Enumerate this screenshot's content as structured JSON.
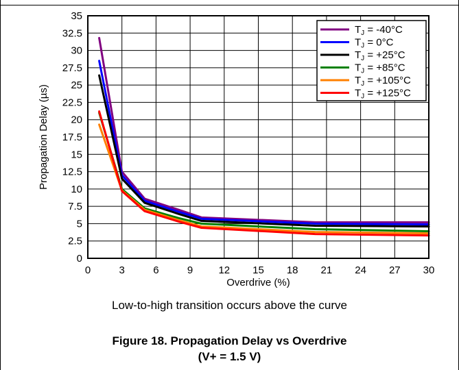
{
  "chart_data": {
    "type": "line",
    "xlabel": "Overdrive (%)",
    "ylabel": "Propagation Delay (µs)",
    "xlim": [
      0,
      30
    ],
    "ylim": [
      0,
      35
    ],
    "xticks": [
      0,
      3,
      6,
      9,
      12,
      15,
      18,
      21,
      24,
      27,
      30
    ],
    "xtick_labels": [
      "0",
      "3",
      "6",
      "9",
      "12",
      "15",
      "18",
      "21",
      "24",
      "27",
      "30"
    ],
    "yticks": [
      0,
      2.5,
      5,
      7.5,
      10,
      12.5,
      15,
      17.5,
      20,
      22.5,
      25,
      27.5,
      30,
      32.5,
      35
    ],
    "ytick_labels": [
      "0",
      "2.5",
      "5",
      "7.5",
      "10",
      "12.5",
      "15",
      "17.5",
      "20",
      "22.5",
      "25",
      "27.5",
      "30",
      "32.5",
      "35"
    ],
    "grid": true,
    "legend_position": "top-right",
    "x": [
      1,
      3,
      5,
      8,
      10,
      20,
      30
    ],
    "series": [
      {
        "name": "T",
        "subscript": "J",
        "suffix": " = -40°C",
        "color": "#800080",
        "values": [
          31.8,
          12.5,
          8.6,
          7.0,
          5.9,
          5.2,
          5.2
        ]
      },
      {
        "name": "T",
        "subscript": "J",
        "suffix": " = 0°C",
        "color": "#0000ff",
        "values": [
          28.5,
          12.0,
          8.3,
          6.7,
          5.7,
          5.0,
          4.9
        ]
      },
      {
        "name": "T",
        "subscript": "J",
        "suffix": " = +25°C",
        "color": "#000000",
        "values": [
          26.4,
          11.5,
          8.0,
          6.4,
          5.4,
          4.7,
          4.6
        ]
      },
      {
        "name": "T",
        "subscript": "J",
        "suffix": " = +85°C",
        "color": "#008000",
        "values": [
          21.0,
          10.0,
          7.2,
          5.8,
          5.0,
          4.2,
          3.9
        ]
      },
      {
        "name": "T",
        "subscript": "J",
        "suffix": " = +105°C",
        "color": "#ff8000",
        "values": [
          19.3,
          9.8,
          7.0,
          5.5,
          4.6,
          3.8,
          3.6
        ]
      },
      {
        "name": "T",
        "subscript": "J",
        "suffix": " = +125°C",
        "color": "#ff0000",
        "values": [
          21.2,
          9.7,
          6.8,
          5.3,
          4.4,
          3.5,
          3.3
        ]
      }
    ]
  },
  "annotation": "Low-to-high transition occurs above the curve",
  "caption": {
    "line1": "Figure 18. Propagation Delay vs Overdrive",
    "line2": "(V+ = 1.5 V)"
  }
}
